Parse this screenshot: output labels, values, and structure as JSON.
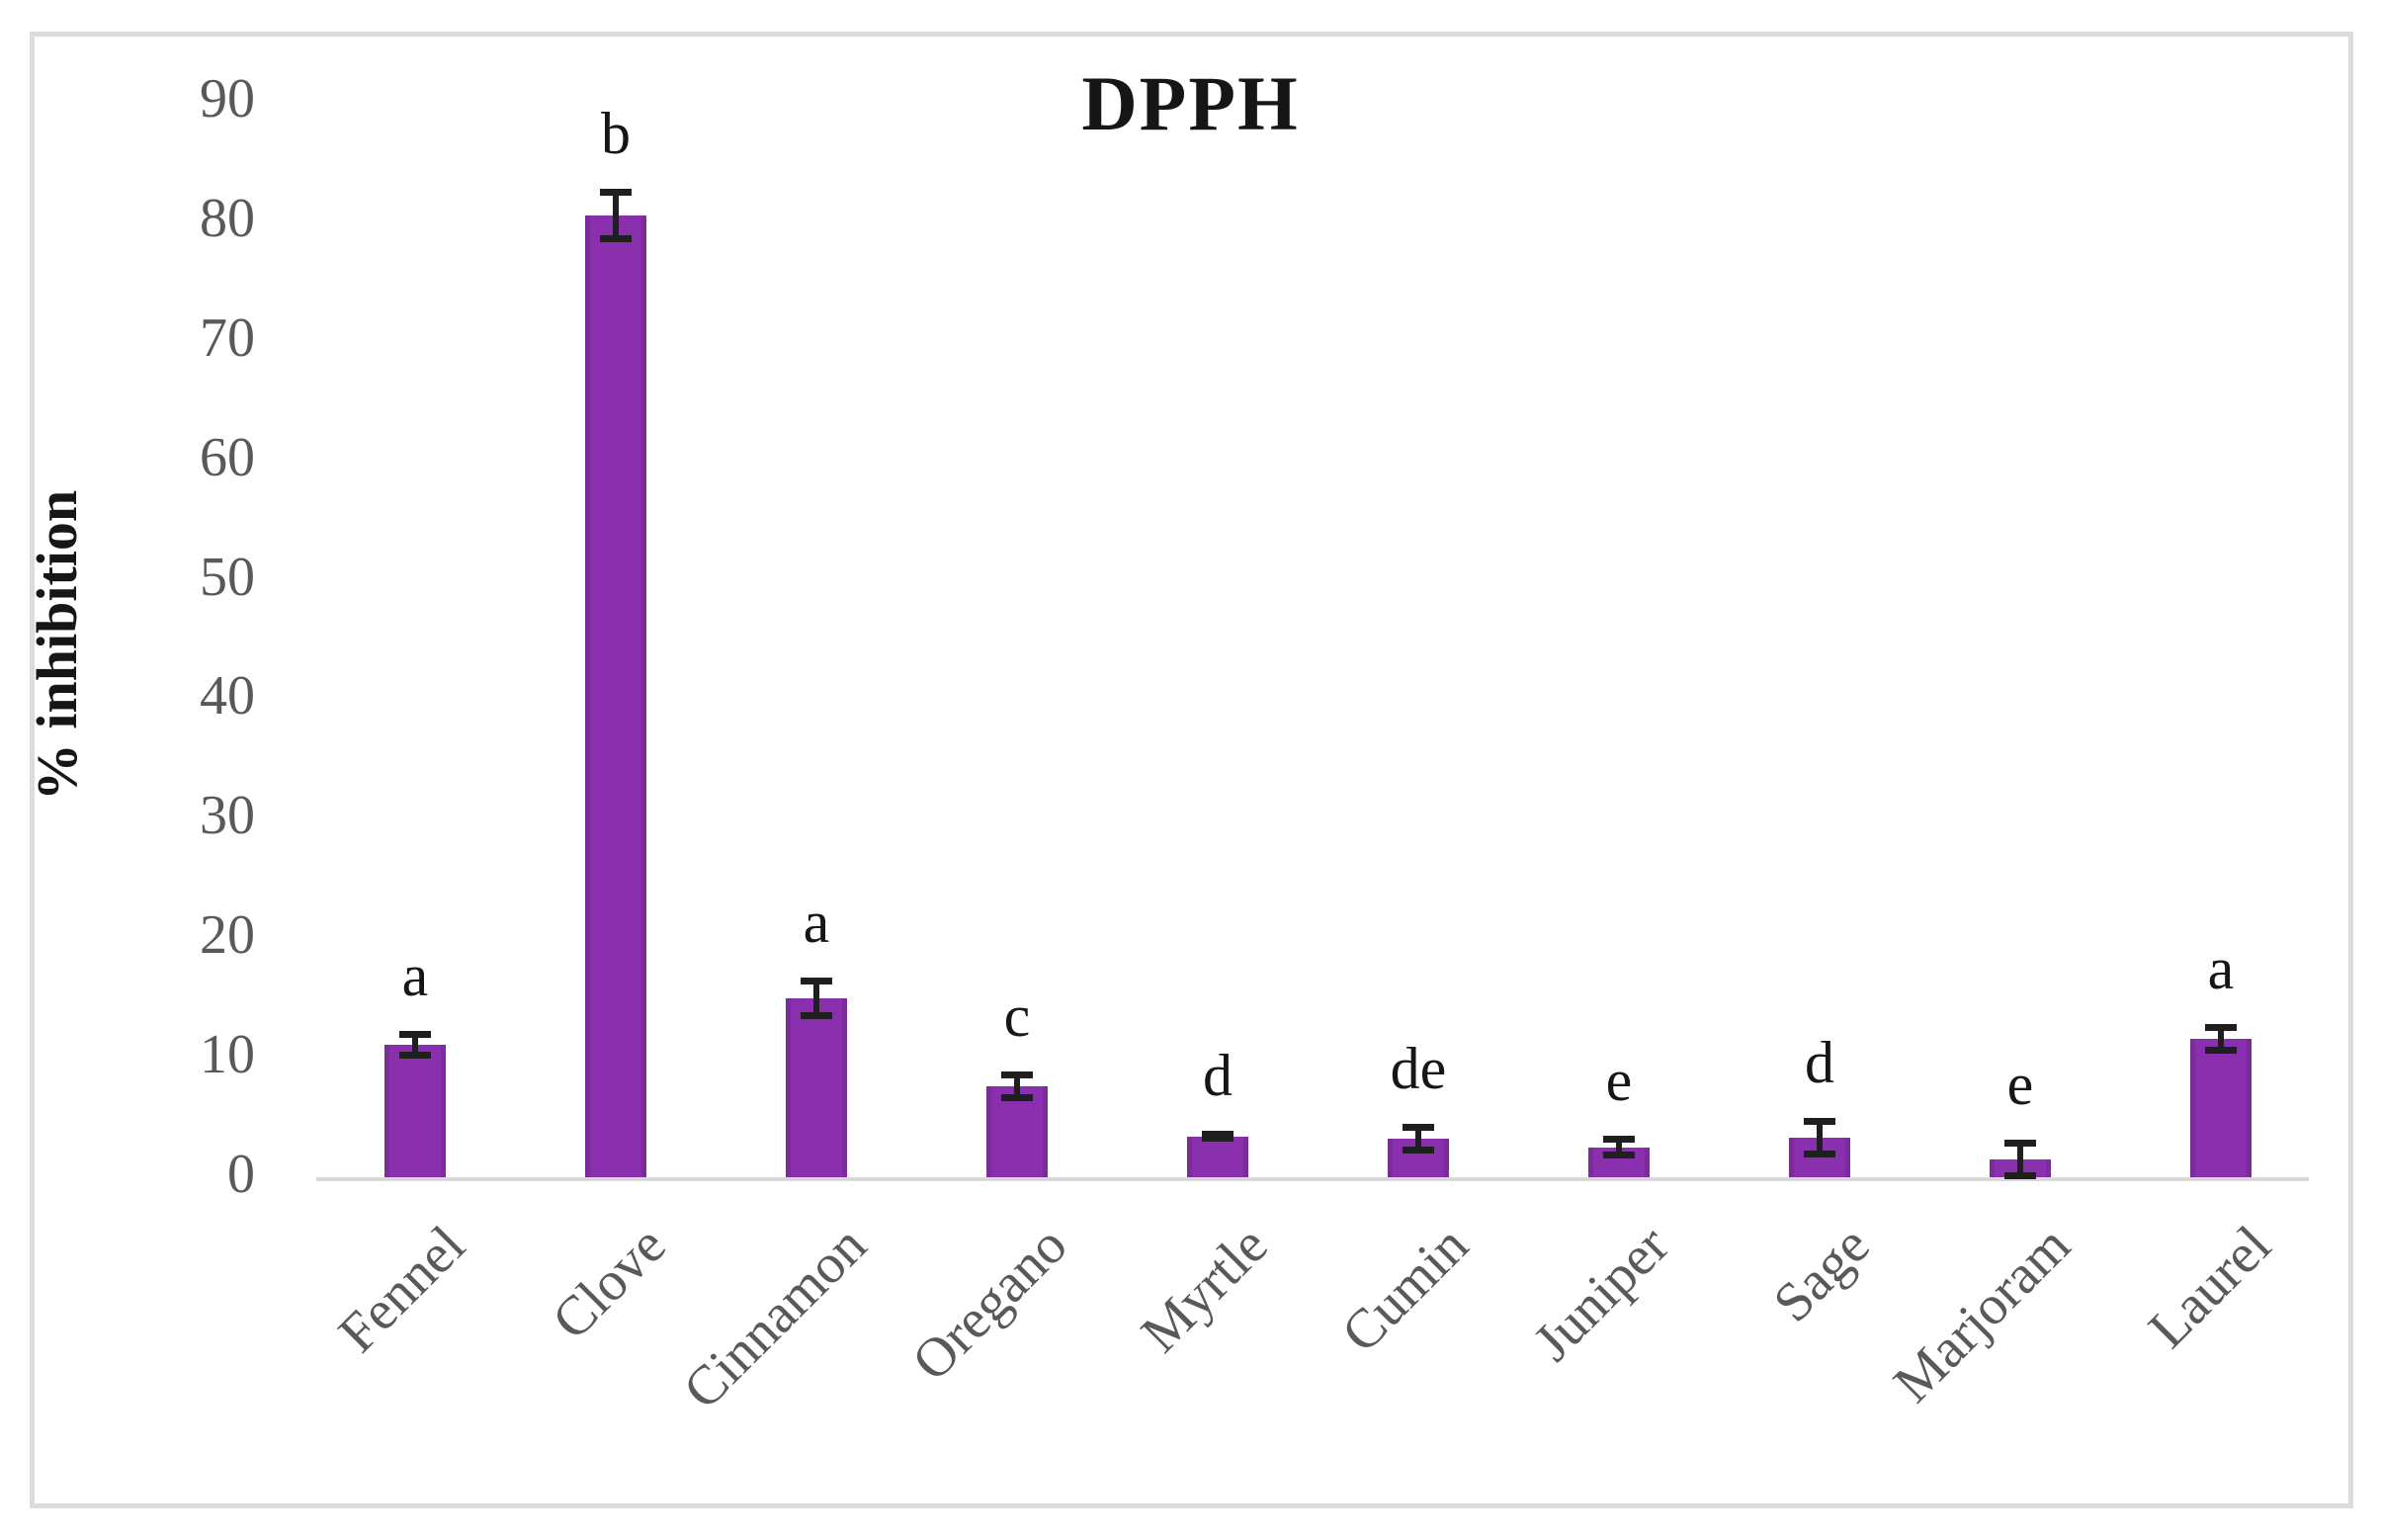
{
  "chart_data": {
    "type": "bar",
    "title": "DPPH",
    "xlabel": "",
    "ylabel": "% inhibition",
    "ylim": [
      0,
      90
    ],
    "ytick_step": 10,
    "ytick_labels": [
      "0",
      "10",
      "20",
      "30",
      "40",
      "50",
      "60",
      "70",
      "80",
      "90"
    ],
    "grid": "off",
    "legend": "none",
    "categories": [
      "Fennel",
      "Clove",
      "Cinnamon",
      "Oregano",
      "Myrtle",
      "Cumin",
      "Juniper",
      "Sage",
      "Marjoram",
      "Laurel"
    ],
    "values": [
      11.1,
      80.5,
      15.0,
      7.6,
      3.4,
      3.2,
      2.5,
      3.3,
      1.5,
      11.6
    ],
    "error_bars": [
      0.9,
      2.0,
      1.5,
      1.0,
      0.2,
      1.0,
      0.7,
      1.4,
      1.4,
      1.0
    ],
    "significance_letters": [
      "a",
      "b",
      "a",
      "c",
      "d",
      "de",
      "e",
      "d",
      "e",
      "a"
    ],
    "colors": {
      "bar_fill": "#8a2fae",
      "bar_edge": "#7c2b9b",
      "error_bar": "#1f1f1f",
      "axis_line": "#d9d9d9",
      "tick_label": "#595959",
      "text": "#161616",
      "frame_border": "#dcdcdc",
      "background": "#ffffff"
    }
  }
}
